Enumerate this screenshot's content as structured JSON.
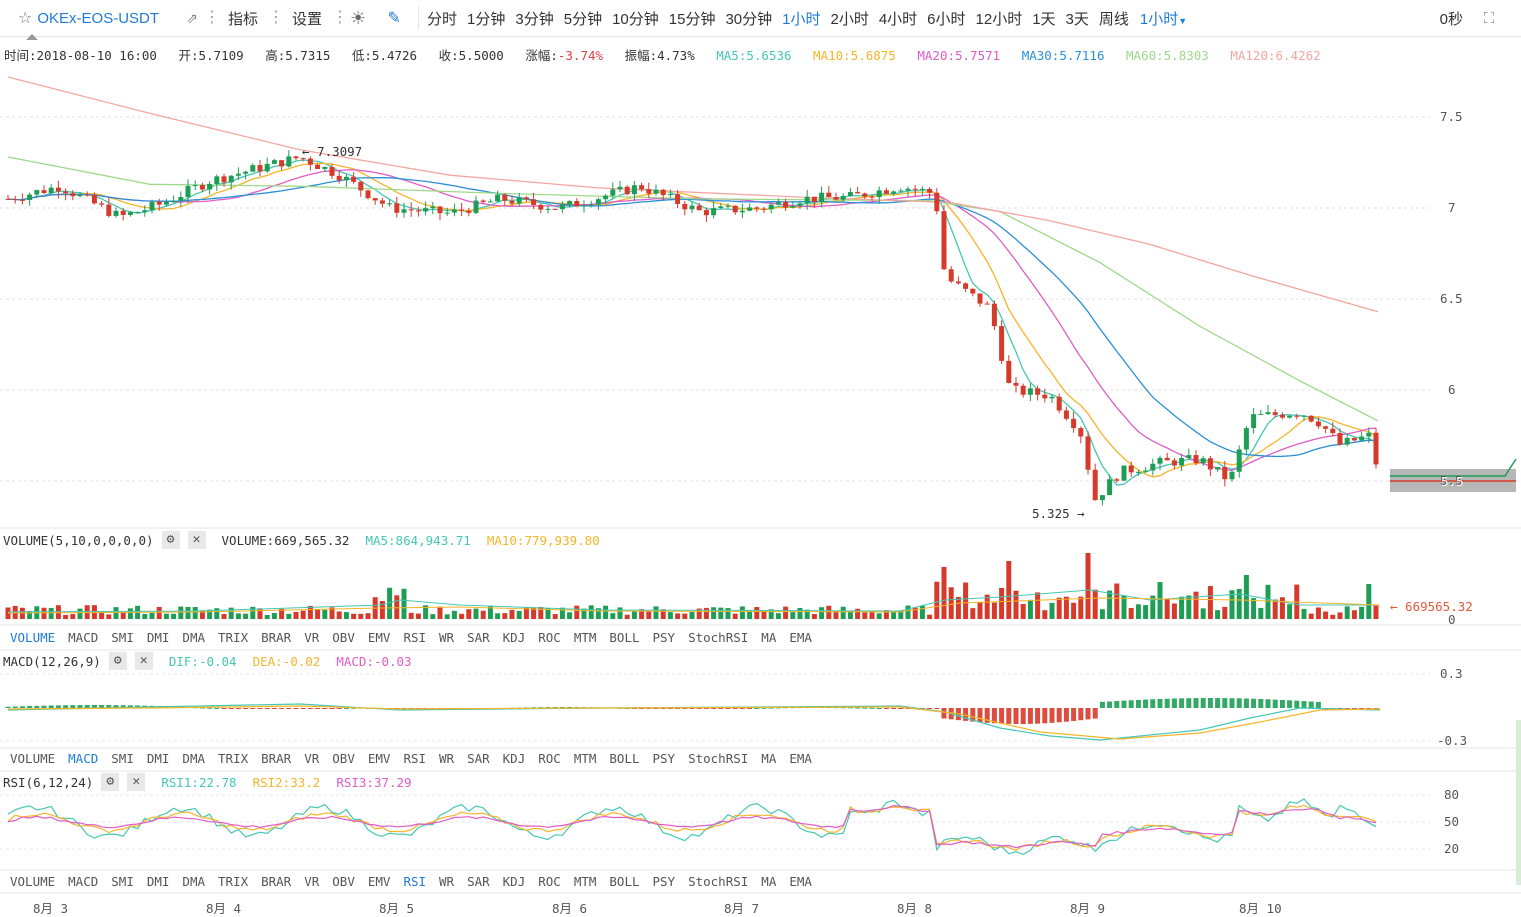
{
  "toolbar": {
    "symbol": "OKEx-EOS-USDT",
    "indicator_label": "指标",
    "settings_label": "设置",
    "periods": [
      "分时",
      "1分钟",
      "3分钟",
      "5分钟",
      "10分钟",
      "15分钟",
      "30分钟",
      "1小时",
      "2小时",
      "4小时",
      "6小时",
      "12小时",
      "1天",
      "3天",
      "周线"
    ],
    "active_period": "1小时",
    "period_dropdown": "1小时",
    "countdown": "0秒"
  },
  "info": {
    "time": "时间:2018-08-10 16:00",
    "open": "开:5.7109",
    "high": "高:5.7315",
    "low": "低:5.4726",
    "close": "收:5.5000",
    "change": "涨幅:-3.74%",
    "amplitude": "振幅:4.73%",
    "ma5": "MA5:5.6536",
    "ma10": "MA10:5.6875",
    "ma20": "MA20:5.7571",
    "ma30": "MA30:5.7116",
    "ma60": "MA60:5.8303",
    "ma120": "MA120:6.4262"
  },
  "colors": {
    "up": "#1e9e55",
    "down": "#d63a2a",
    "ma5": "#44c7b4",
    "ma10": "#f5b52a",
    "ma20": "#e05cc8",
    "ma30": "#2b8fd6",
    "ma60": "#9fd88a",
    "ma120": "#f4a6a0",
    "accent": "#1e7cd6",
    "change_down": "#e04040"
  },
  "price_axis": [
    "7.5",
    "7",
    "6.5",
    "6",
    "5.5"
  ],
  "annotations": {
    "high": "← 7.3097",
    "low": "5.325 →",
    "volume_last": "← 669565.32"
  },
  "current_price": "5.5",
  "volume_panel": {
    "title": "VOLUME(5,10,0,0,0,0)",
    "value": "VOLUME:669,565.32",
    "ma5": "MA5:864,943.71",
    "ma10": "MA10:779,939.80",
    "axis_zero": "0"
  },
  "macd_panel": {
    "title": "MACD(12,26,9)",
    "dif": "DIF:-0.04",
    "dea": "DEA:-0.02",
    "macd": "MACD:-0.03",
    "axis_top": "0.3",
    "axis_bottom": "-0.3"
  },
  "rsi_panel": {
    "title": "RSI(6,12,24)",
    "rsi1": "RSI1:22.78",
    "rsi2": "RSI2:33.2",
    "rsi3": "RSI3:37.29",
    "axis": [
      "80",
      "50",
      "20"
    ]
  },
  "indicator_tabs": [
    "VOLUME",
    "MACD",
    "SMI",
    "DMI",
    "DMA",
    "TRIX",
    "BRAR",
    "VR",
    "OBV",
    "EMV",
    "RSI",
    "WR",
    "SAR",
    "KDJ",
    "ROC",
    "MTM",
    "BOLL",
    "PSY",
    "StochRSI",
    "MA",
    "EMA"
  ],
  "x_axis": [
    "8月 3",
    "8月 4",
    "8月 5",
    "8月 6",
    "8月 7",
    "8月 8",
    "8月 9",
    "8月 10"
  ]
}
